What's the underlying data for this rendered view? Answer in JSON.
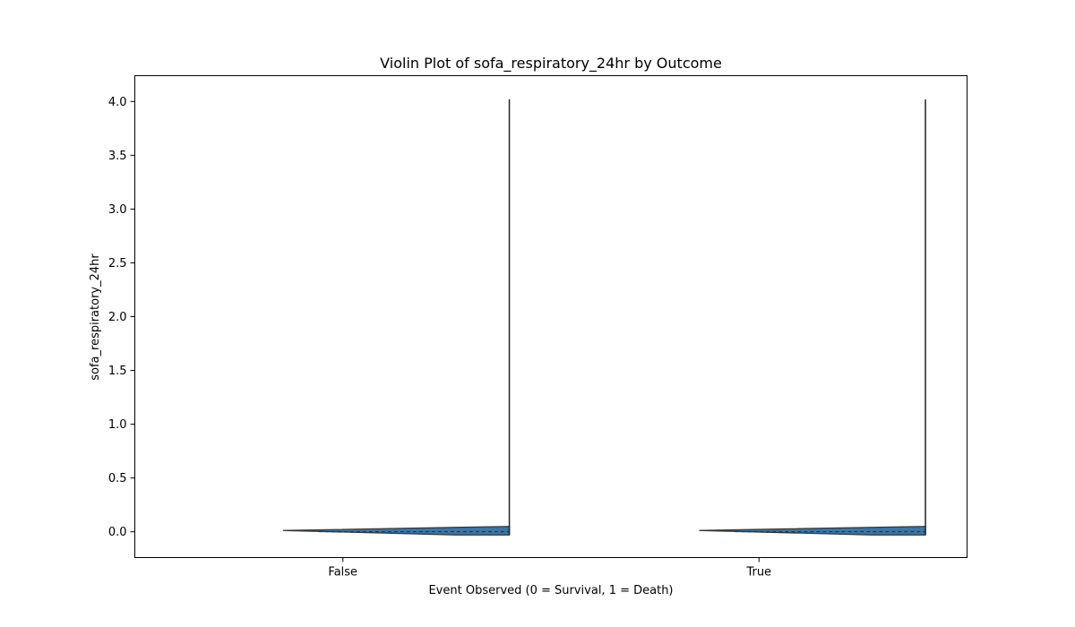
{
  "chart_data": {
    "type": "violin",
    "title": "Violin Plot of sofa_respiratory_24hr by Outcome",
    "xlabel": "Event Observed (0 = Survival, 1 = Death)",
    "ylabel": "sofa_respiratory_24hr",
    "categories": [
      "False",
      "True"
    ],
    "yticks": [
      "0.0",
      "0.5",
      "1.0",
      "1.5",
      "2.0",
      "2.5",
      "3.0",
      "3.5",
      "4.0"
    ],
    "ylim": [
      -0.24,
      4.24
    ],
    "grid": false,
    "legend": "none",
    "violin_color": "#3a76a8",
    "edge_color": "#333333",
    "violins": [
      {
        "category": "False",
        "min": -0.03,
        "max": 4.02,
        "median": 0.0,
        "q1": -0.03,
        "q3": 0.05
      },
      {
        "category": "True",
        "min": -0.03,
        "max": 4.02,
        "median": 0.0,
        "q1": -0.03,
        "q3": 0.05
      }
    ]
  }
}
